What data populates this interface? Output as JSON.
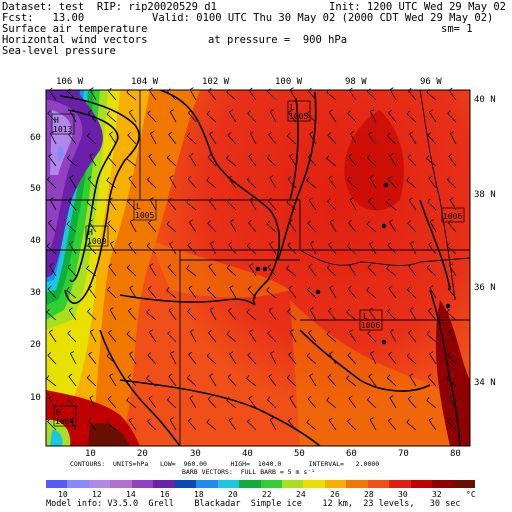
{
  "header": {
    "dataset_line": "Dataset: test  RIP: rip20020529 d1",
    "init_line": "Init: 1200 UTC Wed 29 May 02",
    "fcst_line": "Fcst:   13.00",
    "valid_line": "Valid: 0100 UTC Thu 30 May 02 (2000 CDT Wed 29 May 02)",
    "field1": "Surface air temperature",
    "smoothing": "sm= 1",
    "field2": "Horizontal wind vectors",
    "pressure_line": "at pressure =  900 hPa",
    "field3": "Sea-level pressure"
  },
  "longitude_labels": [
    "106 W",
    "104 W",
    "102 W",
    "100 W",
    "98 W",
    "96 W"
  ],
  "latitude_labels": [
    "40 N",
    "38 N",
    "36 N",
    "34 N"
  ],
  "y_grid_labels": [
    "60",
    "50",
    "40",
    "30",
    "20",
    "10"
  ],
  "x_grid_labels": [
    "10",
    "20",
    "30",
    "40",
    "50",
    "60",
    "70",
    "80"
  ],
  "pressure_highs": [
    {
      "label": "H",
      "value": "1013"
    },
    {
      "label": "H",
      "value": "1009"
    },
    {
      "label": "H",
      "value": "1004"
    }
  ],
  "pressure_lows": [
    {
      "label": "L",
      "value": "1005"
    },
    {
      "label": "L",
      "value": "1005"
    },
    {
      "label": "L",
      "value": "1006"
    },
    {
      "label": "L",
      "value": "1006"
    }
  ],
  "footer": {
    "contours_line": "CONTOURS:  UNITS=hPa   LOW=  960.00      HIGH=  1040.0       INTERVAL=   2.0000",
    "barbs_line": "BARB VECTORS:  FULL BARB = 5 m s⁻¹",
    "model_info": "Model info: V3.5.0  Grell    Blackadar  Simple ice    12 km,  23 levels,   30 sec"
  },
  "color_legend": {
    "labels": [
      "10",
      "12",
      "14",
      "16",
      "18",
      "20",
      "22",
      "24",
      "26",
      "28",
      "30",
      "32",
      "°C"
    ],
    "colors": [
      "#5858ff",
      "#8888ff",
      "#b088e8",
      "#b070d0",
      "#9040c0",
      "#6a20a8",
      "#0a4ab8",
      "#1e8cf0",
      "#18c8e0",
      "#10b038",
      "#30d030",
      "#a8e020",
      "#e8e000",
      "#f8b000",
      "#f07800",
      "#f05018",
      "#e02010",
      "#c00000",
      "#900000",
      "#6a1000"
    ]
  }
}
